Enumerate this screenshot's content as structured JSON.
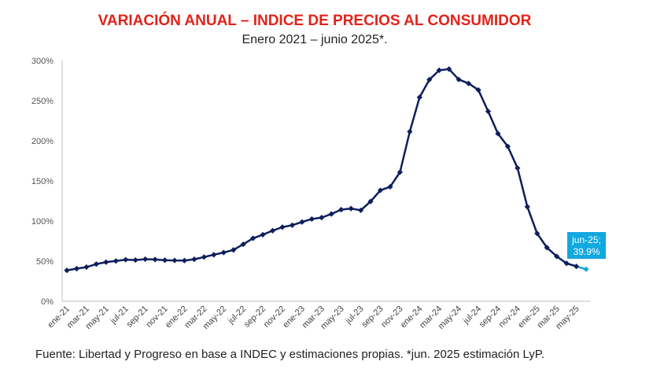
{
  "chart_data": {
    "type": "line",
    "title": "VARIACIÓN ANUAL – INDICE DE PRECIOS AL CONSUMIDOR",
    "subtitle": "Enero 2021 – junio 2025*.",
    "source": "Fuente: Libertad y Progreso en base a INDEC y estimaciones propias. *jun. 2025 estimación LyP.",
    "ylim": [
      0,
      300
    ],
    "y_ticks": [
      "0%",
      "50%",
      "100%",
      "150%",
      "200%",
      "250%",
      "300%"
    ],
    "x": [
      "ene-21",
      "feb-21",
      "mar-21",
      "abr-21",
      "may-21",
      "jun-21",
      "jul-21",
      "ago-21",
      "sep-21",
      "oct-21",
      "nov-21",
      "dic-21",
      "ene-22",
      "feb-22",
      "mar-22",
      "abr-22",
      "may-22",
      "jun-22",
      "jul-22",
      "ago-22",
      "sep-22",
      "oct-22",
      "nov-22",
      "dic-22",
      "ene-23",
      "feb-23",
      "mar-23",
      "abr-23",
      "may-23",
      "jun-23",
      "jul-23",
      "ago-23",
      "sep-23",
      "oct-23",
      "nov-23",
      "dic-23",
      "ene-24",
      "feb-24",
      "mar-24",
      "abr-24",
      "may-24",
      "jun-24",
      "jul-24",
      "ago-24",
      "sep-24",
      "oct-24",
      "nov-24",
      "dic-24",
      "ene-25",
      "feb-25",
      "mar-25",
      "abr-25",
      "may-25",
      "jun-25"
    ],
    "x_tick_labels": [
      "ene-21",
      "mar-21",
      "may-21",
      "jul-21",
      "sep-21",
      "nov-21",
      "ene-22",
      "mar-22",
      "may-22",
      "jul-22",
      "sep-22",
      "nov-22",
      "ene-23",
      "mar-23",
      "may-23",
      "jul-23",
      "sep-23",
      "nov-23",
      "ene-24",
      "mar-24",
      "may-24",
      "jul-24",
      "sep-24",
      "nov-24",
      "ene-25",
      "mar-25",
      "may-25"
    ],
    "series": [
      {
        "values": [
          38.5,
          40.7,
          42.6,
          46.3,
          48.8,
          50.2,
          51.8,
          51.4,
          52.5,
          52.1,
          51.2,
          50.9,
          50.7,
          52.3,
          55.1,
          58.0,
          60.7,
          64.0,
          71.0,
          78.5,
          83.0,
          88.0,
          92.4,
          94.8,
          98.8,
          102.5,
          104.3,
          108.8,
          114.2,
          115.6,
          113.4,
          124.4,
          138.3,
          142.7,
          160.9,
          211.4,
          254.2,
          276.2,
          287.9,
          289.4,
          276.4,
          271.5,
          263.4,
          236.7,
          209.0,
          193.0,
          166.0,
          117.8,
          84.5,
          66.9,
          55.9,
          47.3,
          43.5,
          39.9
        ],
        "color": "#0d1e5c"
      }
    ],
    "callout": {
      "label_line1": "jun-25;",
      "label_line2": "39.9%",
      "color": "#12a8e0"
    },
    "grid": false
  }
}
